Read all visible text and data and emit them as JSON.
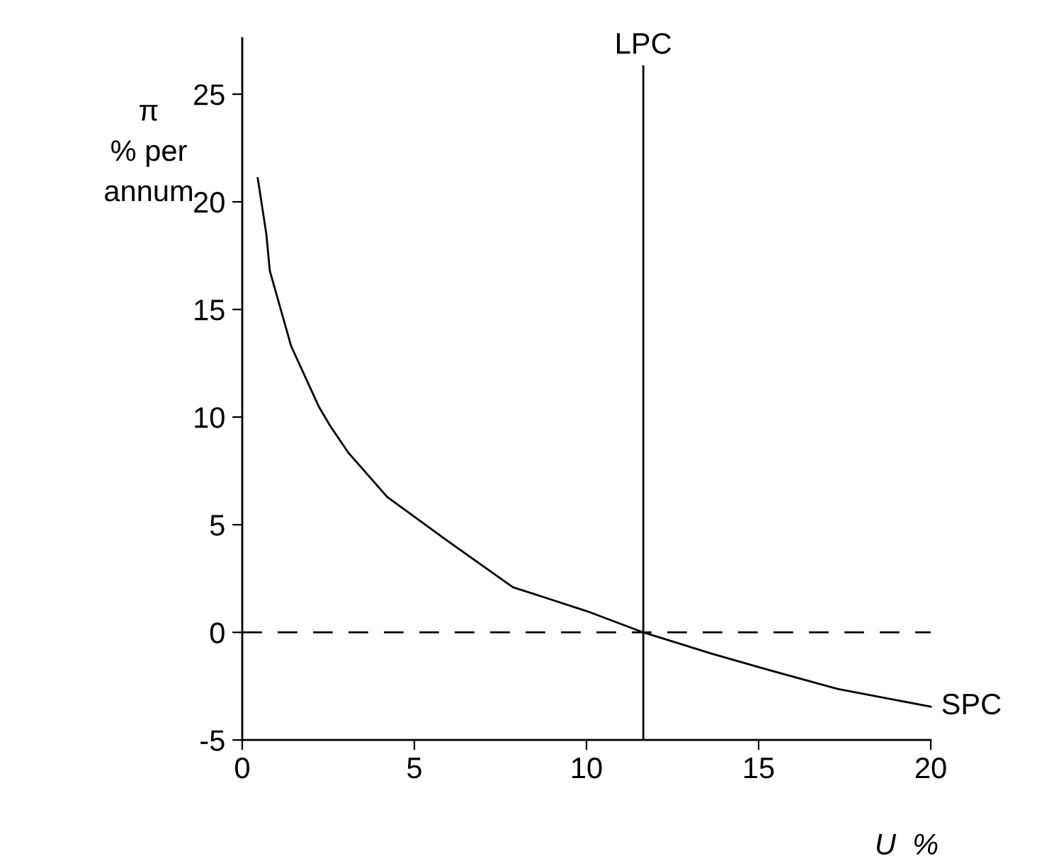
{
  "chart_data": {
    "type": "line",
    "ylabel": "π\n% per\nannum",
    "xlabel": "U  %",
    "series": [
      {
        "name": "SPC",
        "color": "#000000",
        "x": [
          0.45,
          0.7,
          0.8,
          1.42,
          2.22,
          2.55,
          3.08,
          4.21,
          6.04,
          7.86,
          10,
          11.65,
          13.66,
          15.3,
          17.3,
          20
        ],
        "values": [
          21.1,
          18.5,
          16.8,
          13.3,
          10.5,
          9.6,
          8.35,
          6.29,
          4.16,
          2.1,
          0.99,
          0,
          -1.0,
          -1.75,
          -2.63,
          -3.45
        ]
      }
    ],
    "ref_lines": [
      {
        "axis": "x",
        "value": 11.65,
        "label": "LPC",
        "color": "#000000",
        "line_style": "solid"
      },
      {
        "axis": "y",
        "value": 0,
        "label": null,
        "color": "#000000",
        "line_style": "dashed"
      }
    ],
    "xlim": [
      0,
      20
    ],
    "xticks": [
      0,
      5,
      10,
      15,
      20
    ],
    "ylim": [
      -5,
      27.6
    ],
    "yticks": [
      -5,
      0,
      5,
      10,
      15,
      20,
      25
    ],
    "grid": false,
    "legend": false,
    "marker": "none",
    "line_style": "solid"
  }
}
